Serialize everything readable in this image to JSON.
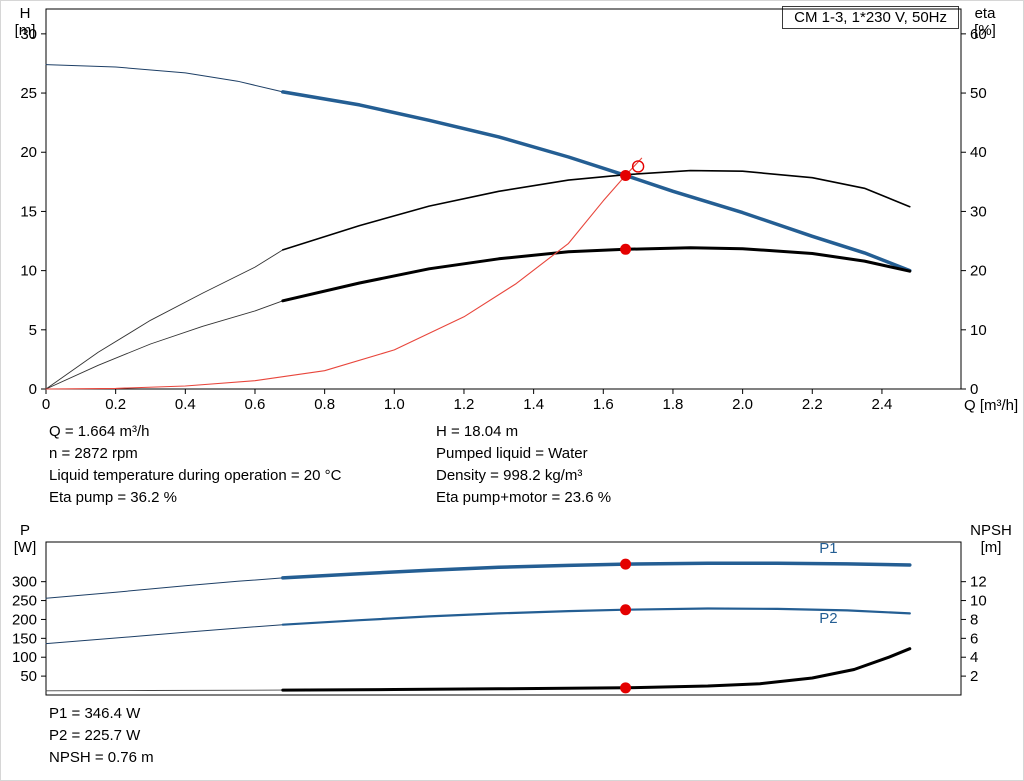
{
  "title_box": "CM 1-3, 1*230 V, 50Hz",
  "colors": {
    "curve_blue": "#245e93",
    "curve_thin_blue": "#1d3f66",
    "red": "#e40000",
    "black": "#000000"
  },
  "labels": {
    "h": "H",
    "h_unit": "[m]",
    "eta": "eta",
    "eta_unit": "[%]",
    "q_axis": "Q [m³/h]",
    "p": "P",
    "p_unit": "[W]",
    "npsh": "NPSH",
    "npsh_unit": "[m]"
  },
  "info": {
    "left": [
      "Q = 1.664 m³/h",
      "n = 2872 rpm",
      "Liquid temperature during operation = 20 °C",
      "Eta pump = 36.2 %"
    ],
    "right": [
      "H = 18.04 m",
      "Pumped liquid = Water",
      "Density = 998.2 kg/m³",
      "Eta pump+motor = 23.6 %"
    ],
    "bottom": [
      "P1 = 346.4 W",
      "P2 = 225.7 W",
      "NPSH = 0.76 m"
    ]
  },
  "chart_data": [
    {
      "type": "line",
      "title": "CM 1-3, 1*230 V, 50Hz",
      "xlabel": "Q [m³/h]",
      "ylabel_left": "H [m]",
      "ylabel_right": "eta [%]",
      "plot": {
        "l": 45,
        "t": 8,
        "r": 960,
        "b": 388
      },
      "x_range": [
        0,
        2.627
      ],
      "y_left_range": [
        0,
        32.1
      ],
      "y_right_range": [
        0,
        64.2
      ],
      "x_tick_values": [
        0,
        0.2,
        0.4,
        0.6,
        0.8,
        1.0,
        1.2,
        1.4,
        1.6,
        1.8,
        2.0,
        2.2,
        2.4
      ],
      "x_tick_labels": [
        "0",
        "0.2",
        "0.4",
        "0.6",
        "0.8",
        "1.0",
        "1.2",
        "1.4",
        "1.6",
        "1.8",
        "2.0",
        "2.2",
        "2.4"
      ],
      "y_left_tick_values": [
        0,
        5,
        10,
        15,
        20,
        25,
        30
      ],
      "y_left_tick_labels": [
        "0",
        "5",
        "10",
        "15",
        "20",
        "25",
        "30"
      ],
      "y_right_tick_values": [
        0,
        10,
        20,
        30,
        40,
        50,
        60
      ],
      "y_right_tick_labels": [
        "0",
        "10",
        "20",
        "30",
        "40",
        "50",
        "60"
      ],
      "series": [
        {
          "id": "hq-curve-ext",
          "axis": "left",
          "color": "#1d3f66",
          "width": 1,
          "points": [
            [
              0,
              27.4
            ],
            [
              0.2,
              27.2
            ],
            [
              0.4,
              26.7
            ],
            [
              0.55,
              26.0
            ],
            [
              0.68,
              25.1
            ]
          ]
        },
        {
          "id": "hq-curve",
          "axis": "left",
          "color": "#245e93",
          "width": 3.5,
          "points": [
            [
              0.68,
              25.1
            ],
            [
              0.9,
              24.0
            ],
            [
              1.1,
              22.7
            ],
            [
              1.3,
              21.3
            ],
            [
              1.5,
              19.6
            ],
            [
              1.664,
              18.04
            ],
            [
              1.8,
              16.7
            ],
            [
              2.0,
              14.9
            ],
            [
              2.2,
              12.9
            ],
            [
              2.35,
              11.5
            ],
            [
              2.48,
              10.0
            ]
          ]
        },
        {
          "id": "eta-pump-curve-ext",
          "axis": "right",
          "color": "#333333",
          "width": 0.9,
          "points": [
            [
              0,
              0
            ],
            [
              0.15,
              6.2
            ],
            [
              0.3,
              11.6
            ],
            [
              0.45,
              16.2
            ],
            [
              0.6,
              20.6
            ],
            [
              0.68,
              23.5
            ]
          ]
        },
        {
          "id": "eta-pump-curve",
          "axis": "right",
          "color": "#000000",
          "width": 1.6,
          "points": [
            [
              0.68,
              23.5
            ],
            [
              0.9,
              27.6
            ],
            [
              1.1,
              30.9
            ],
            [
              1.3,
              33.4
            ],
            [
              1.5,
              35.3
            ],
            [
              1.664,
              36.2
            ],
            [
              1.85,
              36.9
            ],
            [
              2.0,
              36.8
            ],
            [
              2.2,
              35.7
            ],
            [
              2.35,
              33.9
            ],
            [
              2.48,
              30.8
            ]
          ]
        },
        {
          "id": "eta-pump-motor-curve-ext",
          "axis": "right",
          "color": "#333333",
          "width": 0.9,
          "points": [
            [
              0,
              0
            ],
            [
              0.15,
              4.0
            ],
            [
              0.3,
              7.6
            ],
            [
              0.45,
              10.6
            ],
            [
              0.6,
              13.2
            ],
            [
              0.68,
              14.9
            ]
          ]
        },
        {
          "id": "eta-pump-motor-curve",
          "axis": "right",
          "color": "#000000",
          "width": 3,
          "points": [
            [
              0.68,
              14.9
            ],
            [
              0.9,
              17.9
            ],
            [
              1.1,
              20.3
            ],
            [
              1.3,
              22.0
            ],
            [
              1.5,
              23.2
            ],
            [
              1.664,
              23.6
            ],
            [
              1.85,
              23.85
            ],
            [
              2.0,
              23.7
            ],
            [
              2.2,
              22.9
            ],
            [
              2.35,
              21.6
            ],
            [
              2.48,
              19.9
            ]
          ]
        },
        {
          "id": "system-curve",
          "axis": "left",
          "color": "#e8463c",
          "width": 1.1,
          "points": [
            [
              0,
              0
            ],
            [
              0.2,
              0.05
            ],
            [
              0.4,
              0.25
            ],
            [
              0.6,
              0.7
            ],
            [
              0.8,
              1.55
            ],
            [
              1.0,
              3.3
            ],
            [
              1.2,
              6.1
            ],
            [
              1.35,
              8.9
            ],
            [
              1.5,
              12.3
            ],
            [
              1.6,
              15.9
            ],
            [
              1.664,
              18.04
            ],
            [
              1.71,
              19.5
            ]
          ]
        }
      ],
      "markers": [
        {
          "id": "duty-point-h",
          "x": 1.664,
          "y": 18.04,
          "axis": "left",
          "style": "filled"
        },
        {
          "id": "duty-point-eta-motor",
          "x": 1.664,
          "y": 23.6,
          "axis": "right",
          "style": "filled"
        },
        {
          "id": "requested-duty-point",
          "x": 1.7,
          "y": 18.8,
          "axis": "left",
          "style": "open"
        }
      ],
      "series_labels": []
    },
    {
      "type": "line",
      "title": "",
      "xlabel": "",
      "ylabel_left": "P [W]",
      "ylabel_right": "NPSH [m]",
      "plot": {
        "l": 45,
        "t": 16,
        "r": 960,
        "b": 169
      },
      "x_range": [
        0,
        2.627
      ],
      "y_left_range": [
        0,
        405
      ],
      "y_right_range": [
        0,
        16.2
      ],
      "x_tick_values": [],
      "x_tick_labels": [],
      "y_left_tick_values": [
        50,
        100,
        150,
        200,
        250,
        300
      ],
      "y_left_tick_labels": [
        "50",
        "100",
        "150",
        "200",
        "250",
        "300"
      ],
      "y_right_tick_values": [
        2,
        4,
        6,
        8,
        10,
        12
      ],
      "y_right_tick_labels": [
        "2",
        "4",
        "6",
        "8",
        "10",
        "12"
      ],
      "series": [
        {
          "id": "p1-curve-ext",
          "axis": "left",
          "color": "#1d3f66",
          "width": 1,
          "points": [
            [
              0,
              256
            ],
            [
              0.2,
              272
            ],
            [
              0.4,
              289
            ],
            [
              0.55,
              301
            ],
            [
              0.68,
              310
            ]
          ]
        },
        {
          "id": "p1-curve",
          "axis": "left",
          "color": "#245e93",
          "width": 3.5,
          "points": [
            [
              0.68,
              310
            ],
            [
              0.9,
              321
            ],
            [
              1.1,
              330
            ],
            [
              1.3,
              338
            ],
            [
              1.5,
              343
            ],
            [
              1.664,
              346.4
            ],
            [
              1.9,
              349
            ],
            [
              2.1,
              349
            ],
            [
              2.3,
              347
            ],
            [
              2.48,
              344
            ]
          ]
        },
        {
          "id": "p2-curve-ext",
          "axis": "left",
          "color": "#1d3f66",
          "width": 1,
          "points": [
            [
              0,
              136
            ],
            [
              0.2,
              151
            ],
            [
              0.4,
              166
            ],
            [
              0.55,
              177
            ],
            [
              0.68,
              186
            ]
          ]
        },
        {
          "id": "p2-curve",
          "axis": "left",
          "color": "#245e93",
          "width": 2.2,
          "points": [
            [
              0.68,
              186
            ],
            [
              0.9,
              198
            ],
            [
              1.1,
              208
            ],
            [
              1.3,
              216
            ],
            [
              1.5,
              222
            ],
            [
              1.664,
              225.7
            ],
            [
              1.9,
              229
            ],
            [
              2.1,
              228
            ],
            [
              2.3,
              224
            ],
            [
              2.48,
              216
            ]
          ]
        },
        {
          "id": "npsh-curve-ext",
          "axis": "right",
          "color": "#444444",
          "width": 0.9,
          "points": [
            [
              0,
              0.45
            ],
            [
              0.3,
              0.48
            ],
            [
              0.68,
              0.52
            ]
          ]
        },
        {
          "id": "npsh-curve",
          "axis": "right",
          "color": "#000000",
          "width": 3,
          "points": [
            [
              0.68,
              0.52
            ],
            [
              1.0,
              0.58
            ],
            [
              1.3,
              0.66
            ],
            [
              1.664,
              0.76
            ],
            [
              1.9,
              0.95
            ],
            [
              2.05,
              1.2
            ],
            [
              2.2,
              1.8
            ],
            [
              2.32,
              2.7
            ],
            [
              2.42,
              4.0
            ],
            [
              2.48,
              4.9
            ]
          ]
        }
      ],
      "markers": [
        {
          "id": "duty-point-p1",
          "x": 1.664,
          "y": 346.4,
          "axis": "left",
          "style": "filled"
        },
        {
          "id": "duty-point-p2",
          "x": 1.664,
          "y": 225.7,
          "axis": "left",
          "style": "filled"
        },
        {
          "id": "duty-point-npsh",
          "x": 1.664,
          "y": 0.76,
          "axis": "right",
          "style": "filled"
        }
      ],
      "series_labels": [
        {
          "id": "p1-label",
          "text": "P1",
          "x": 2.22,
          "y": 376,
          "axis": "left",
          "color": "#245e93"
        },
        {
          "id": "p2-label",
          "text": "P2",
          "x": 2.22,
          "y": 190,
          "axis": "left",
          "color": "#245e93"
        }
      ]
    }
  ]
}
